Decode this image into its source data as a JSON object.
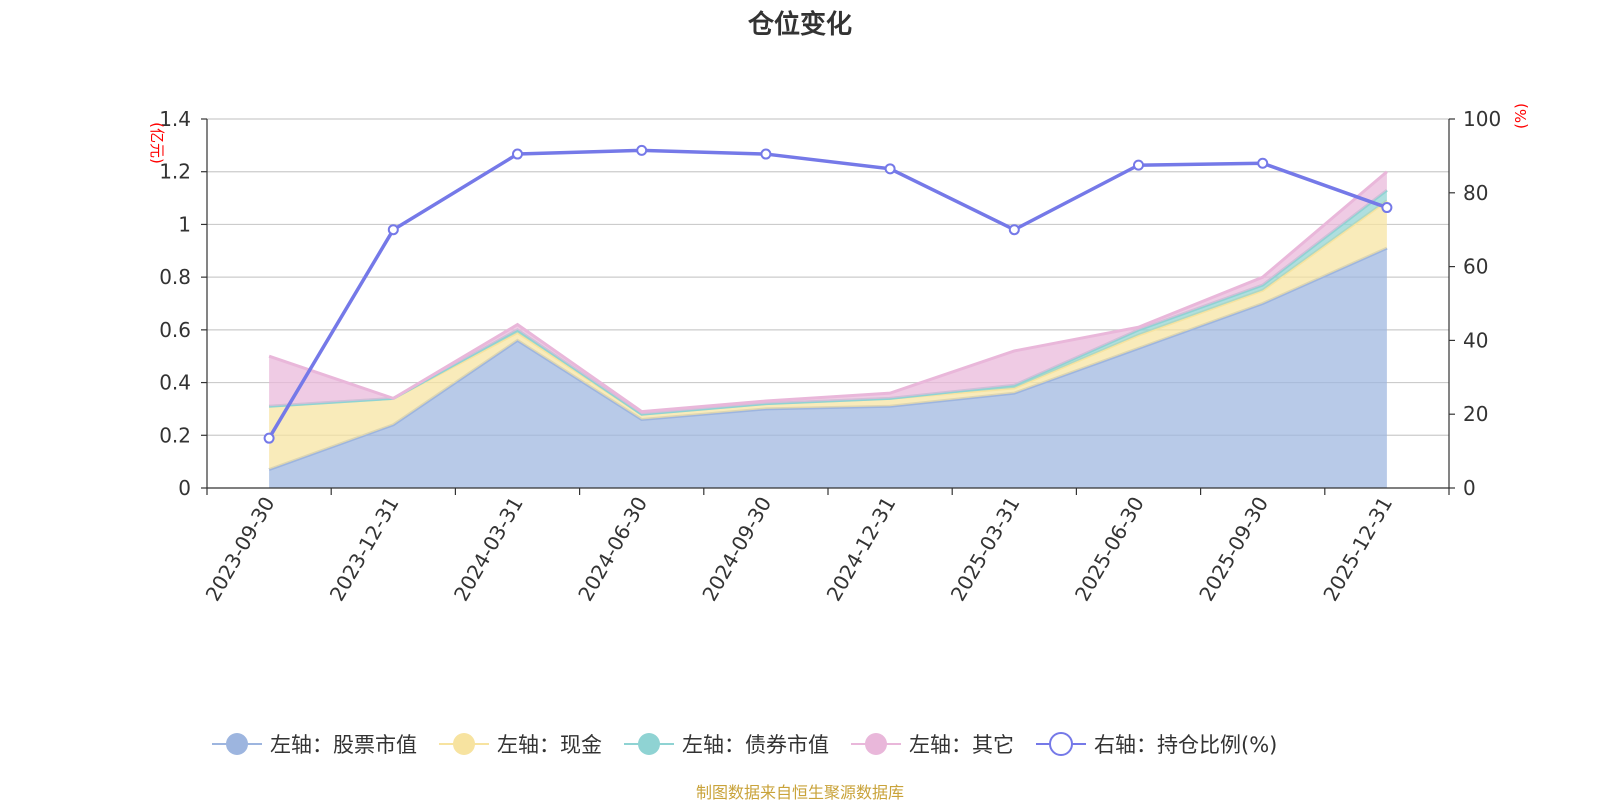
{
  "chart_data": {
    "type": "area",
    "title": "仓位变化",
    "categories": [
      "2023-09-30",
      "2023-12-31",
      "2024-03-31",
      "2024-06-30",
      "2024-09-30",
      "2024-12-31",
      "2025-03-31",
      "2025-06-30",
      "2025-09-30",
      "2025-12-31"
    ],
    "left_axis": {
      "unit": "(亿元)",
      "ylim": [
        0,
        1.4
      ],
      "ticks": [
        "0",
        "0.2",
        "0.4",
        "0.6",
        "0.8",
        "1",
        "1.2",
        "1.4"
      ]
    },
    "right_axis": {
      "unit": "(%)",
      "ylim": [
        0,
        100
      ],
      "ticks": [
        "0",
        "20",
        "40",
        "60",
        "80",
        "100"
      ]
    },
    "stacked_series": [
      {
        "name": "左轴：股票市值",
        "color": "#9db5df",
        "values": [
          0.07,
          0.24,
          0.56,
          0.26,
          0.3,
          0.31,
          0.36,
          0.53,
          0.7,
          0.91
        ]
      },
      {
        "name": "左轴：现金",
        "color": "#f7e3a0",
        "values": [
          0.24,
          0.1,
          0.03,
          0.02,
          0.02,
          0.03,
          0.02,
          0.05,
          0.05,
          0.18
        ]
      },
      {
        "name": "左轴：债券市值",
        "color": "#8fd3d3",
        "values": [
          0.0,
          0.0,
          0.01,
          0.0,
          0.0,
          0.0,
          0.01,
          0.02,
          0.02,
          0.04
        ]
      },
      {
        "name": "左轴：其它",
        "color": "#e9b7da",
        "values": [
          0.19,
          0.0,
          0.02,
          0.01,
          0.01,
          0.02,
          0.13,
          0.01,
          0.03,
          0.07
        ]
      }
    ],
    "line_series": {
      "name": "右轴：持仓比例(%)",
      "color": "#7579e8",
      "values": [
        13.5,
        70,
        90.5,
        91.5,
        90.5,
        86.5,
        70,
        87.5,
        88,
        76
      ]
    },
    "legend_position": "bottom",
    "grid": true
  },
  "source_note": "制图数据来自恒生聚源数据库"
}
